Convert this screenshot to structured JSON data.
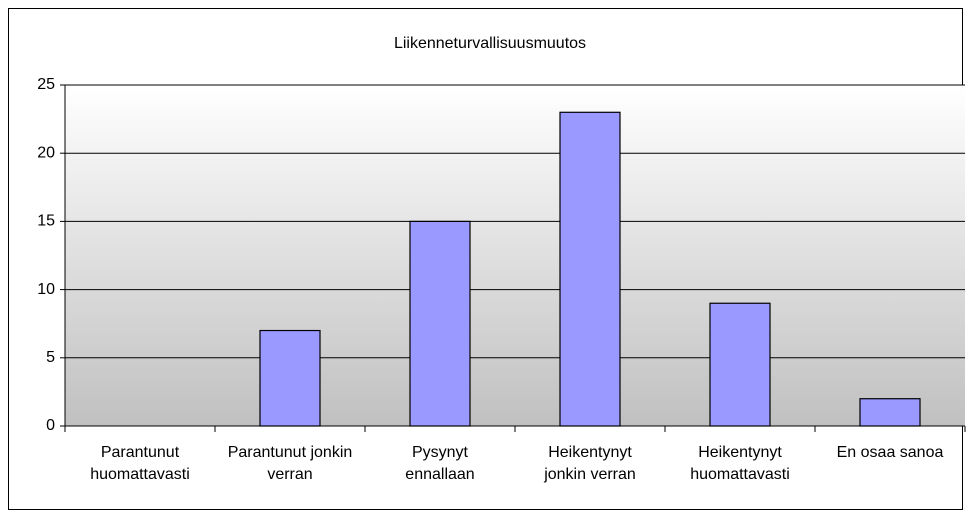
{
  "chart_data": {
    "type": "bar",
    "title": "Liikenneturvallisuusmuutos",
    "categories": [
      "Parantunut huomattavasti",
      "Parantunut jonkin verran",
      "Pysynyt ennallaan",
      "Heikentynyt jonkin verran",
      "Heikentynyt huomattavasti",
      "En osaa sanoa"
    ],
    "values": [
      0,
      7,
      15,
      23,
      9,
      2
    ],
    "color": "#9999ff",
    "ylim": [
      0,
      25
    ],
    "yticks": [
      0,
      5,
      10,
      15,
      20,
      25
    ],
    "grid": true
  }
}
